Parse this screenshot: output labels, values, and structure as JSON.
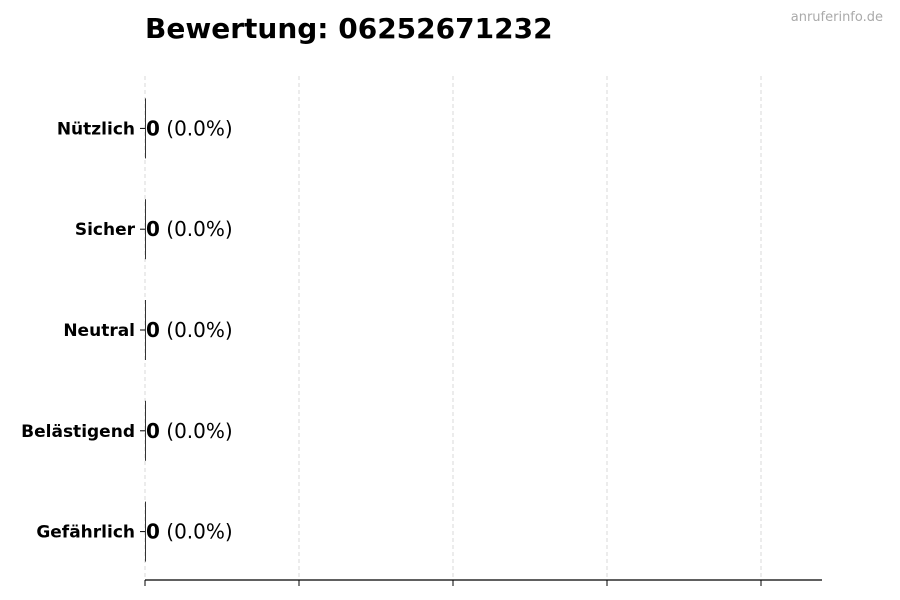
{
  "watermark": "anruferinfo.de",
  "chart_data": {
    "type": "bar",
    "orientation": "horizontal",
    "title": "Bewertung: 06252671232",
    "categories": [
      "Nützlich",
      "Sicher",
      "Neutral",
      "Belästigend",
      "Gefährlich"
    ],
    "values": [
      0,
      0,
      0,
      0,
      0
    ],
    "value_labels": [
      "0",
      "0",
      "0",
      "0",
      "0"
    ],
    "percent_labels": [
      "(0.0%)",
      "(0.0%)",
      "(0.0%)",
      "(0.0%)",
      "(0.0%)"
    ],
    "xlabel": "",
    "ylabel": "",
    "grid": "x dashed",
    "bar_color": "#333333"
  }
}
